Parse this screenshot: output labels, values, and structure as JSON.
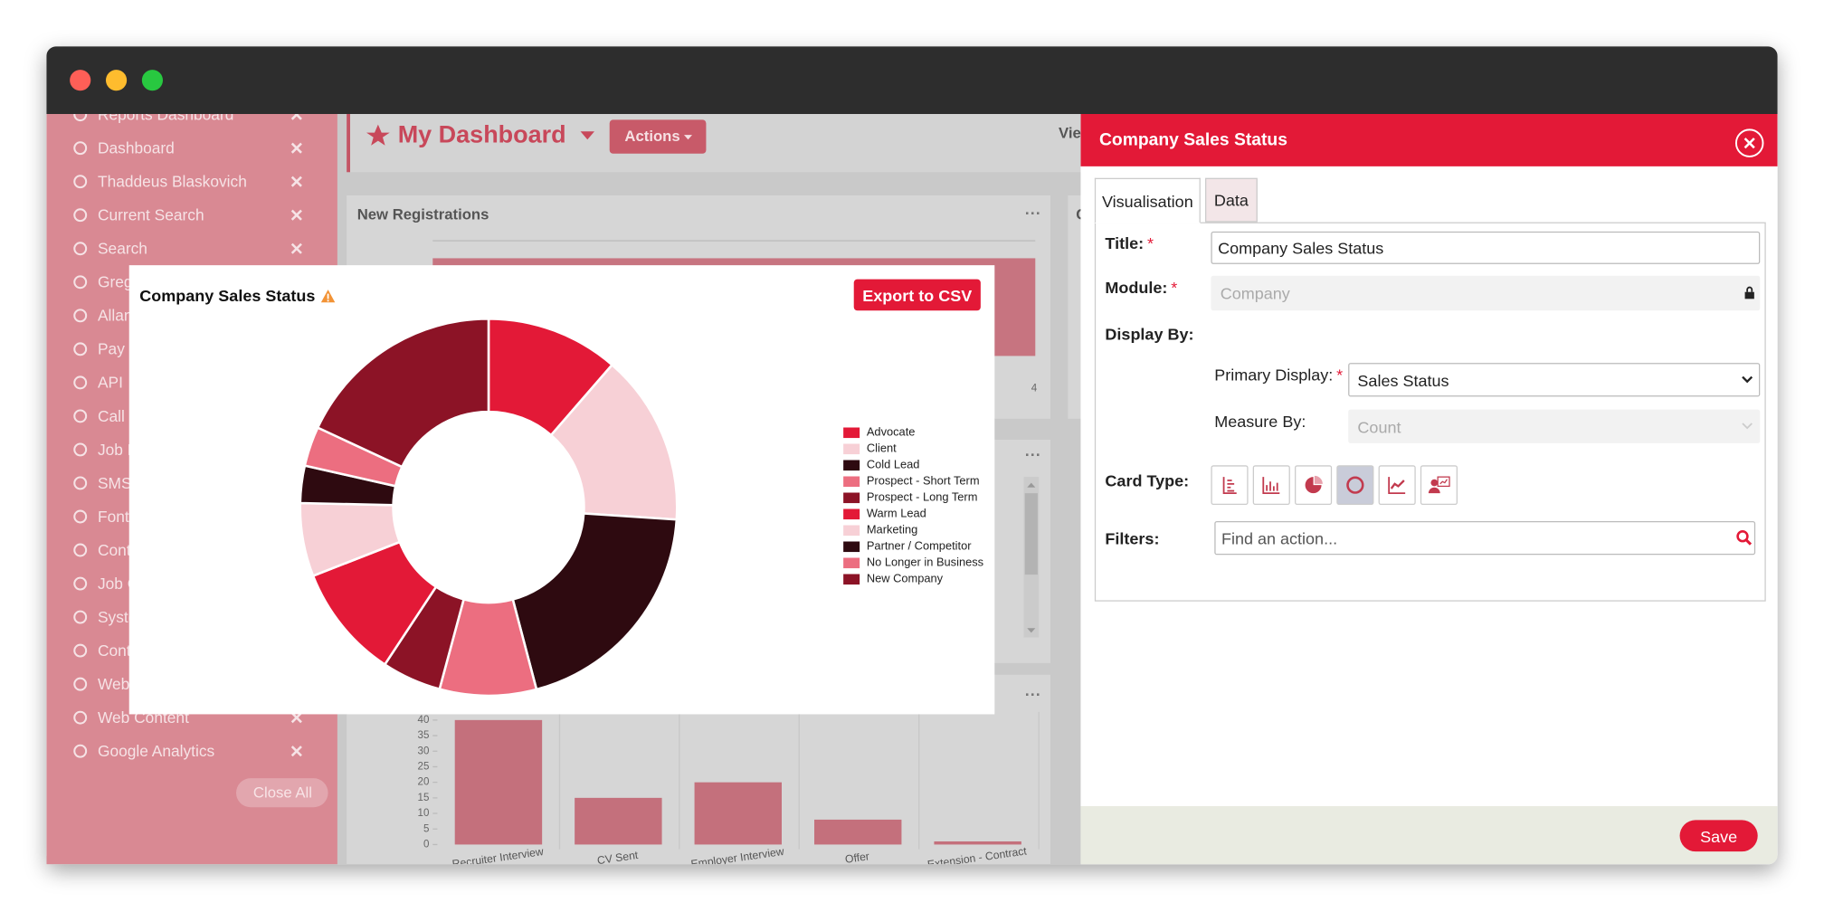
{
  "sidebar": {
    "items": [
      "Reports Dashboard",
      "Dashboard",
      "Thaddeus Blaskovich",
      "Current Search",
      "Search",
      "Greg",
      "Allan",
      "Pay &",
      "API",
      "Call",
      "Job B",
      "SMS",
      "Fonts",
      "Cont",
      "Job C",
      "Syste",
      "Cont",
      "Web",
      "Web Content",
      "Google Analytics"
    ],
    "close_all": "Close All"
  },
  "dashboard": {
    "title": "My Dashboard",
    "actions": "Actions",
    "view": "Vie",
    "new_registrations": {
      "title": "New Registrations",
      "value_label": 4
    },
    "second_column_title": "C"
  },
  "popup": {
    "export": "Export to CSV"
  },
  "chart_data": [
    {
      "type": "donut",
      "title": "Company Sales Status",
      "categories": [
        "Advocate",
        "Client",
        "Cold Lead",
        "Prospect - Short Term",
        "Prospect - Long Term",
        "Warm Lead",
        "Marketing",
        "Partner / Competitor",
        "No Longer in Business",
        "New Company"
      ],
      "values": [
        11.4,
        14.7,
        19.9,
        8.3,
        5.1,
        9.8,
        6.3,
        3.2,
        3.4,
        18.1
      ],
      "colors": [
        "#e31937",
        "#f7d0d6",
        "#2e0a10",
        "#ec6e80",
        "#8c1326",
        "#e31937",
        "#f7d0d6",
        "#2e0a10",
        "#ec6e80",
        "#8c1326"
      ]
    },
    {
      "type": "bar",
      "categories": [
        "Recruiter Interview",
        "CV Sent",
        "Employer Interview",
        "Offer",
        "Extension - Contract"
      ],
      "values": [
        40,
        15,
        20,
        8,
        1
      ],
      "color": "#c4707c",
      "ylim": [
        0,
        40
      ],
      "yticks": [
        0,
        5,
        10,
        15,
        20,
        25,
        30,
        35,
        40
      ]
    }
  ],
  "panel": {
    "title": "Company Sales Status",
    "tabs": [
      "Visualisation",
      "Data"
    ],
    "required_mark": "*",
    "fields": {
      "title_label": "Title:",
      "title_value": "Company Sales Status",
      "module_label": "Module:",
      "module_value": "Company",
      "display_by": "Display By:",
      "primary_display_label": "Primary Display:",
      "primary_display_value": "Sales Status",
      "measure_by_label": "Measure By:",
      "measure_by_value": "Count",
      "card_type_label": "Card Type:",
      "filters_label": "Filters:",
      "filters_placeholder": "Find an action..."
    },
    "save": "Save"
  }
}
